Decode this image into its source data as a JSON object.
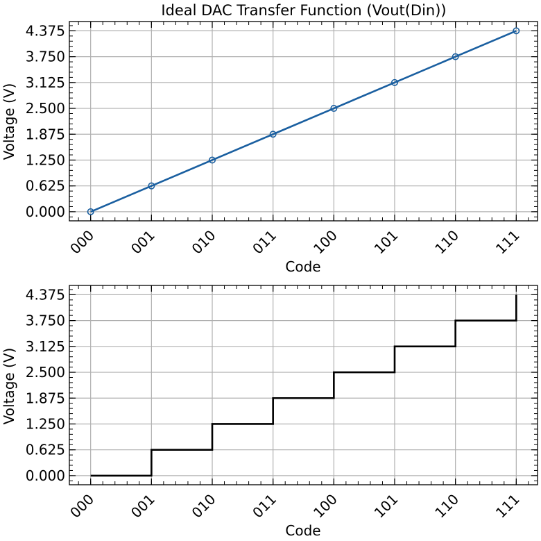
{
  "colors": {
    "line_series": "#1a5fa0",
    "step_series": "#000000",
    "grid": "#b0b0b0",
    "axes": "#000000"
  },
  "chart_data": [
    {
      "type": "line",
      "title": "Ideal DAC Transfer Function (Vout(Din))",
      "xlabel": "Code",
      "ylabel": "Voltage (V)",
      "categories": [
        "000",
        "001",
        "010",
        "011",
        "100",
        "101",
        "110",
        "111"
      ],
      "yticks": [
        "0.000",
        "0.625",
        "1.250",
        "1.875",
        "2.500",
        "3.125",
        "3.750",
        "4.375"
      ],
      "values": [
        0.0,
        0.625,
        1.25,
        1.875,
        2.5,
        3.125,
        3.75,
        4.375
      ],
      "marker": "circle",
      "ylim": [
        -0.22,
        4.6
      ],
      "grid": true
    },
    {
      "type": "line",
      "style": "step",
      "title": "",
      "xlabel": "Code",
      "ylabel": "Voltage (V)",
      "categories": [
        "000",
        "001",
        "010",
        "011",
        "100",
        "101",
        "110",
        "111"
      ],
      "yticks": [
        "0.000",
        "0.625",
        "1.250",
        "1.875",
        "2.500",
        "3.125",
        "3.750",
        "4.375"
      ],
      "values": [
        0.0,
        0.625,
        1.25,
        1.875,
        2.5,
        3.125,
        3.75,
        4.375
      ],
      "ylim": [
        -0.22,
        4.6
      ],
      "grid": true
    }
  ]
}
